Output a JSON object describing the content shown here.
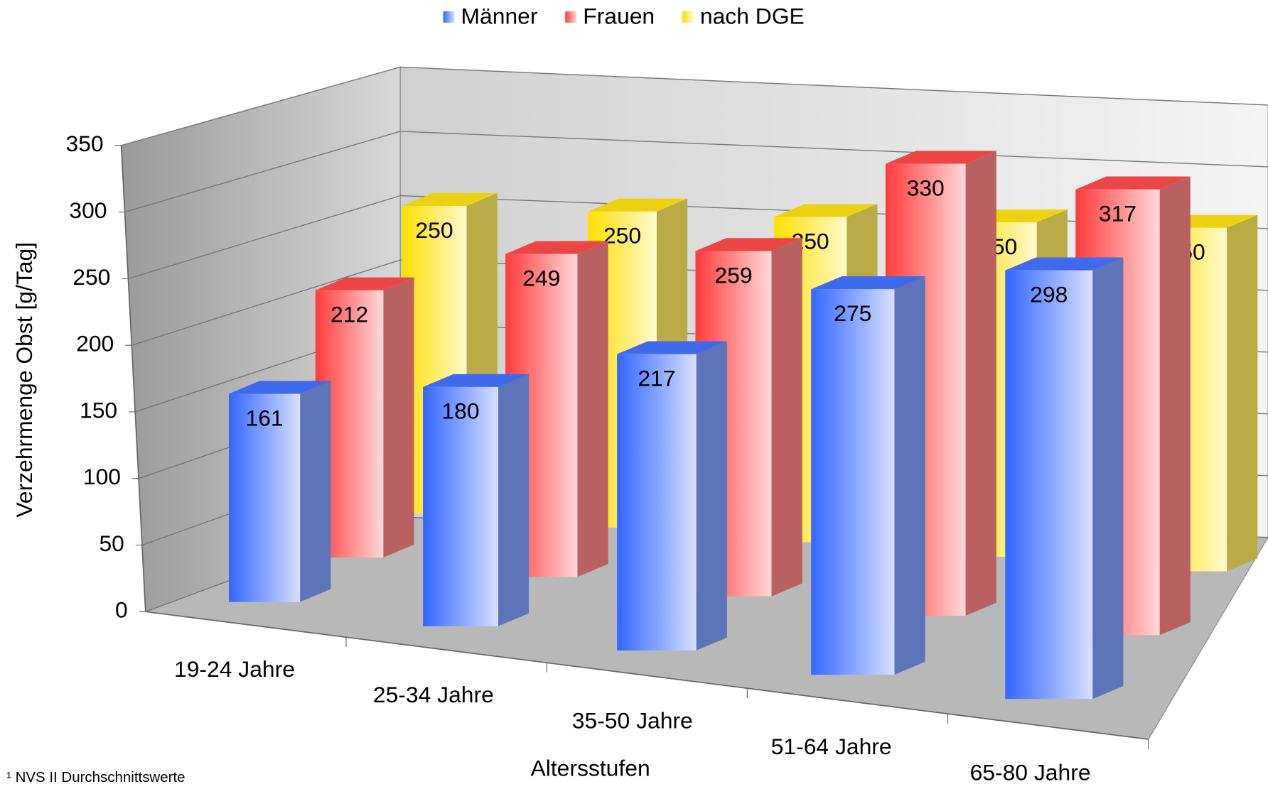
{
  "chart_data": {
    "type": "bar3d",
    "legend": "top",
    "categories": [
      "19-24 Jahre",
      "25-34 Jahre",
      "35-50 Jahre",
      "51-64 Jahre",
      "65-80 Jahre"
    ],
    "series": [
      {
        "name": "Männer",
        "color": "#3366ff",
        "values": [
          161,
          180,
          217,
          275,
          298
        ]
      },
      {
        "name": "Frauen",
        "color": "#ff3b3b",
        "values": [
          212,
          249,
          259,
          330,
          317
        ]
      },
      {
        "name": "nach DGE",
        "color": "#ffe000",
        "values": [
          250,
          250,
          250,
          250,
          250
        ]
      }
    ],
    "ylim": [
      0,
      350
    ],
    "yticks": [
      0,
      50,
      100,
      150,
      200,
      250,
      300,
      350
    ],
    "grid": true,
    "ylabel": "Verzehrmenge Obst [g/Tag]",
    "xlabel": "Altersstufen",
    "footnote": "¹ NVS II Durchschnittswerte"
  }
}
